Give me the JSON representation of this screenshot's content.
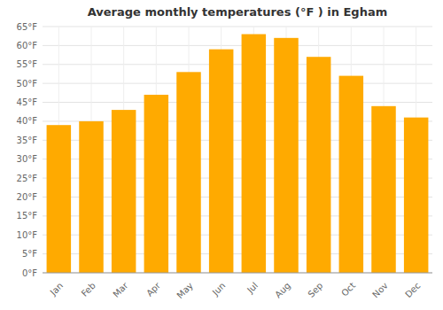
{
  "chart_data": {
    "type": "bar",
    "title": "Average monthly temperatures (°F ) in Egham",
    "categories": [
      "Jan",
      "Feb",
      "Mar",
      "Apr",
      "May",
      "Jun",
      "Jul",
      "Aug",
      "Sep",
      "Oct",
      "Nov",
      "Dec"
    ],
    "values": [
      39,
      40,
      43,
      47,
      53,
      59,
      63,
      62,
      57,
      52,
      44,
      41
    ],
    "color": "#FFAA00",
    "ylim": [
      0,
      65
    ],
    "yticks": [
      {
        "value": 0,
        "label": "0°F"
      },
      {
        "value": 5,
        "label": "5°F"
      },
      {
        "value": 10,
        "label": "10°F"
      },
      {
        "value": 15,
        "label": "15°F"
      },
      {
        "value": 20,
        "label": "20°F"
      },
      {
        "value": 25,
        "label": "25°F"
      },
      {
        "value": 30,
        "label": "30°F"
      },
      {
        "value": 35,
        "label": "35°F"
      },
      {
        "value": 40,
        "label": "40°F"
      },
      {
        "value": 45,
        "label": "45°F"
      },
      {
        "value": 50,
        "label": "50°F"
      },
      {
        "value": 55,
        "label": "55°F"
      },
      {
        "value": 60,
        "label": "60°F"
      },
      {
        "value": 65,
        "label": "65°F"
      }
    ],
    "grid": true
  }
}
